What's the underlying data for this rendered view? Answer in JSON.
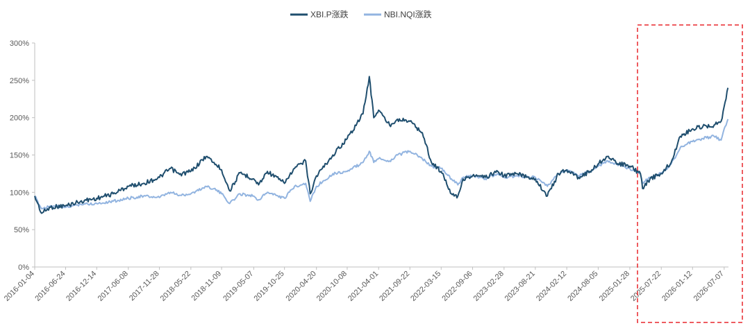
{
  "chart_data": {
    "type": "line",
    "title": "",
    "xlabel": "",
    "ylabel": "",
    "ylim": [
      0,
      300
    ],
    "y_ticks": [
      0,
      50,
      100,
      150,
      200,
      250,
      300
    ],
    "y_tick_labels": [
      "0%",
      "50%",
      "100%",
      "150%",
      "200%",
      "250%",
      "300%"
    ],
    "x_range": [
      "2016-01-04",
      "2026-07-31"
    ],
    "x_tick_labels": [
      "2016-01-04",
      "2016-06-24",
      "2016-12-14",
      "2017-06-08",
      "2017-11-28",
      "2018-05-22",
      "2018-11-09",
      "2019-05-07",
      "2019-10-25",
      "2020-04-20",
      "2020-10-08",
      "2021-04-01",
      "2021-09-22",
      "2022-03-15",
      "2022-09-06",
      "2023-02-28",
      "2023-08-21",
      "2024-02-12",
      "2024-08-05",
      "2025-01-28",
      "2025-07-22",
      "2026-01-12",
      "2026-07-07"
    ],
    "grid": false,
    "legend_position": "top-center",
    "highlight_box": {
      "start": "2025-03-20",
      "end": "2026-08-31",
      "color": "#e8262b",
      "style": "dashed"
    },
    "series": [
      {
        "name": "XBI.P涨跌",
        "color": "#1f4e6e",
        "points": [
          [
            "2016-01-04",
            95
          ],
          [
            "2016-02-11",
            72
          ],
          [
            "2016-04-01",
            80
          ],
          [
            "2016-06-24",
            82
          ],
          [
            "2016-09-15",
            88
          ],
          [
            "2016-12-14",
            92
          ],
          [
            "2017-03-15",
            98
          ],
          [
            "2017-06-08",
            108
          ],
          [
            "2017-09-01",
            112
          ],
          [
            "2017-11-28",
            120
          ],
          [
            "2018-01-29",
            132
          ],
          [
            "2018-03-20",
            124
          ],
          [
            "2018-05-22",
            128
          ],
          [
            "2018-08-15",
            148
          ],
          [
            "2018-09-28",
            140
          ],
          [
            "2018-11-09",
            130
          ],
          [
            "2018-12-24",
            102
          ],
          [
            "2019-02-20",
            126
          ],
          [
            "2019-05-07",
            118
          ],
          [
            "2019-06-03",
            110
          ],
          [
            "2019-07-22",
            128
          ],
          [
            "2019-10-25",
            112
          ],
          [
            "2019-12-20",
            132
          ],
          [
            "2020-02-20",
            142
          ],
          [
            "2020-03-16",
            98
          ],
          [
            "2020-04-20",
            122
          ],
          [
            "2020-07-20",
            150
          ],
          [
            "2020-10-08",
            172
          ],
          [
            "2021-01-04",
            205
          ],
          [
            "2021-02-08",
            255
          ],
          [
            "2021-03-05",
            200
          ],
          [
            "2021-04-01",
            210
          ],
          [
            "2021-06-01",
            190
          ],
          [
            "2021-07-15",
            198
          ],
          [
            "2021-09-22",
            195
          ],
          [
            "2021-11-30",
            180
          ],
          [
            "2022-01-20",
            140
          ],
          [
            "2022-03-15",
            128
          ],
          [
            "2022-05-11",
            98
          ],
          [
            "2022-06-16",
            95
          ],
          [
            "2022-07-15",
            118
          ],
          [
            "2022-09-06",
            122
          ],
          [
            "2022-11-15",
            120
          ],
          [
            "2023-01-24",
            128
          ],
          [
            "2023-02-28",
            122
          ],
          [
            "2023-05-10",
            125
          ],
          [
            "2023-08-21",
            118
          ],
          [
            "2023-10-27",
            95
          ],
          [
            "2023-12-28",
            125
          ],
          [
            "2024-02-12",
            130
          ],
          [
            "2024-04-18",
            120
          ],
          [
            "2024-06-20",
            128
          ],
          [
            "2024-08-05",
            138
          ],
          [
            "2024-09-20",
            148
          ],
          [
            "2024-11-12",
            140
          ],
          [
            "2025-01-28",
            135
          ],
          [
            "2025-03-28",
            125
          ],
          [
            "2025-04-09",
            105
          ],
          [
            "2025-05-20",
            118
          ],
          [
            "2025-07-22",
            125
          ],
          [
            "2025-09-15",
            140
          ],
          [
            "2025-11-05",
            175
          ],
          [
            "2026-01-12",
            185
          ],
          [
            "2026-03-10",
            188
          ],
          [
            "2026-05-12",
            190
          ],
          [
            "2026-06-20",
            195
          ],
          [
            "2026-07-07",
            215
          ],
          [
            "2026-07-28",
            240
          ]
        ]
      },
      {
        "name": "NBI.NQI涨跌",
        "color": "#92b4e0",
        "points": [
          [
            "2016-01-04",
            95
          ],
          [
            "2016-02-11",
            78
          ],
          [
            "2016-04-01",
            82
          ],
          [
            "2016-06-24",
            80
          ],
          [
            "2016-09-15",
            84
          ],
          [
            "2016-12-14",
            85
          ],
          [
            "2017-03-15",
            88
          ],
          [
            "2017-06-08",
            92
          ],
          [
            "2017-09-01",
            95
          ],
          [
            "2017-11-28",
            93
          ],
          [
            "2018-01-29",
            100
          ],
          [
            "2018-03-20",
            96
          ],
          [
            "2018-05-22",
            98
          ],
          [
            "2018-08-15",
            108
          ],
          [
            "2018-09-28",
            105
          ],
          [
            "2018-11-09",
            98
          ],
          [
            "2018-12-24",
            85
          ],
          [
            "2019-02-20",
            98
          ],
          [
            "2019-05-07",
            95
          ],
          [
            "2019-06-03",
            90
          ],
          [
            "2019-07-22",
            100
          ],
          [
            "2019-10-25",
            92
          ],
          [
            "2019-12-20",
            108
          ],
          [
            "2020-02-20",
            112
          ],
          [
            "2020-03-16",
            88
          ],
          [
            "2020-04-20",
            108
          ],
          [
            "2020-07-20",
            125
          ],
          [
            "2020-10-08",
            128
          ],
          [
            "2021-01-04",
            140
          ],
          [
            "2021-02-08",
            155
          ],
          [
            "2021-03-05",
            140
          ],
          [
            "2021-04-01",
            145
          ],
          [
            "2021-06-01",
            142
          ],
          [
            "2021-07-15",
            150
          ],
          [
            "2021-09-22",
            155
          ],
          [
            "2021-11-30",
            145
          ],
          [
            "2022-01-20",
            135
          ],
          [
            "2022-03-15",
            132
          ],
          [
            "2022-05-11",
            118
          ],
          [
            "2022-06-16",
            110
          ],
          [
            "2022-07-15",
            120
          ],
          [
            "2022-09-06",
            122
          ],
          [
            "2022-11-15",
            118
          ],
          [
            "2023-01-24",
            125
          ],
          [
            "2023-02-28",
            120
          ],
          [
            "2023-05-10",
            122
          ],
          [
            "2023-08-21",
            120
          ],
          [
            "2023-10-27",
            108
          ],
          [
            "2023-12-28",
            125
          ],
          [
            "2024-02-12",
            130
          ],
          [
            "2024-04-18",
            122
          ],
          [
            "2024-06-20",
            128
          ],
          [
            "2024-08-05",
            135
          ],
          [
            "2024-09-20",
            142
          ],
          [
            "2024-11-12",
            138
          ],
          [
            "2025-01-28",
            132
          ],
          [
            "2025-03-28",
            125
          ],
          [
            "2025-04-09",
            112
          ],
          [
            "2025-05-20",
            120
          ],
          [
            "2025-07-22",
            125
          ],
          [
            "2025-09-15",
            138
          ],
          [
            "2025-11-05",
            160
          ],
          [
            "2026-01-12",
            168
          ],
          [
            "2026-03-10",
            172
          ],
          [
            "2026-05-12",
            175
          ],
          [
            "2026-06-20",
            170
          ],
          [
            "2026-07-07",
            185
          ],
          [
            "2026-07-28",
            198
          ]
        ]
      }
    ]
  }
}
